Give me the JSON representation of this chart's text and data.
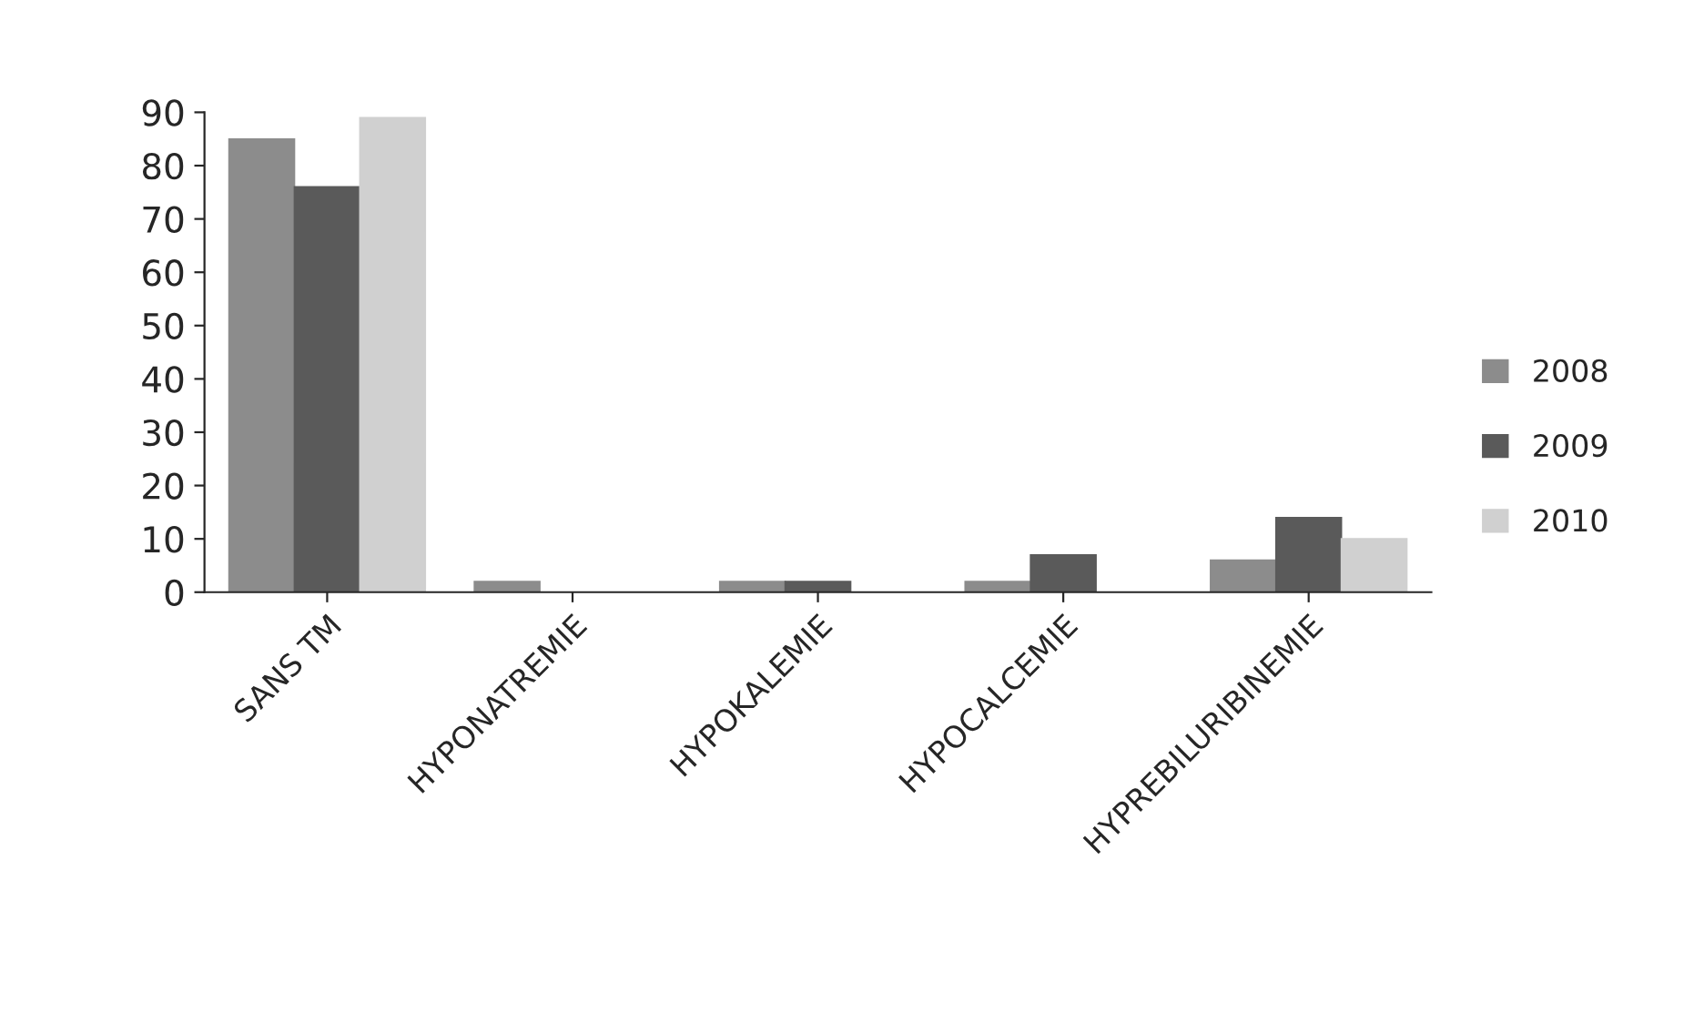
{
  "chart_data": {
    "type": "bar",
    "categories": [
      "SANS TM",
      "HYPONATREMIE",
      "HYPOKALEMIE",
      "HYPOCALCEMIE",
      "HYPREBILURIBINEMIE"
    ],
    "series": [
      {
        "name": "2008",
        "color": "#8c8c8c",
        "values": [
          85,
          2,
          2,
          2,
          6
        ]
      },
      {
        "name": "2009",
        "color": "#5a5a5a",
        "values": [
          76,
          0,
          2,
          7,
          14
        ]
      },
      {
        "name": "2010",
        "color": "#d0d0d0",
        "values": [
          89,
          0,
          0,
          0,
          10
        ]
      }
    ],
    "ylim": [
      0,
      90
    ],
    "yticks": [
      0,
      10,
      20,
      30,
      40,
      50,
      60,
      70,
      80,
      90
    ],
    "grid": false,
    "legend": "right"
  }
}
